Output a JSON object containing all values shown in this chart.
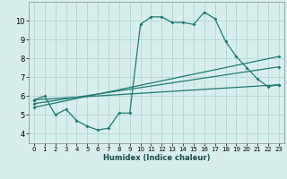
{
  "xlabel": "Humidex (Indice chaleur)",
  "xlim": [
    -0.5,
    23.5
  ],
  "ylim": [
    3.5,
    11.0
  ],
  "yticks": [
    4,
    5,
    6,
    7,
    8,
    9,
    10
  ],
  "xticks": [
    0,
    1,
    2,
    3,
    4,
    5,
    6,
    7,
    8,
    9,
    10,
    11,
    12,
    13,
    14,
    15,
    16,
    17,
    18,
    19,
    20,
    21,
    22,
    23
  ],
  "bg_color": "#d8eeed",
  "grid_color": "#b8d8d4",
  "line_color": "#1e7a70",
  "main_line": {
    "x": [
      0,
      1,
      2,
      3,
      4,
      5,
      6,
      7,
      8,
      9,
      10,
      11,
      12,
      13,
      14,
      15,
      16,
      17,
      18,
      19,
      20,
      21,
      22,
      23
    ],
    "y": [
      5.8,
      6.0,
      5.0,
      5.3,
      4.7,
      4.4,
      4.2,
      4.3,
      5.1,
      5.1,
      9.8,
      10.2,
      10.2,
      9.9,
      9.9,
      9.8,
      10.45,
      10.1,
      8.9,
      8.1,
      7.5,
      6.9,
      6.5,
      6.6
    ]
  },
  "straight_lines": [
    {
      "x": [
        0,
        23
      ],
      "y": [
        5.8,
        6.6
      ]
    },
    {
      "x": [
        0,
        23
      ],
      "y": [
        5.6,
        7.55
      ]
    },
    {
      "x": [
        0,
        23
      ],
      "y": [
        5.4,
        8.1
      ]
    }
  ]
}
